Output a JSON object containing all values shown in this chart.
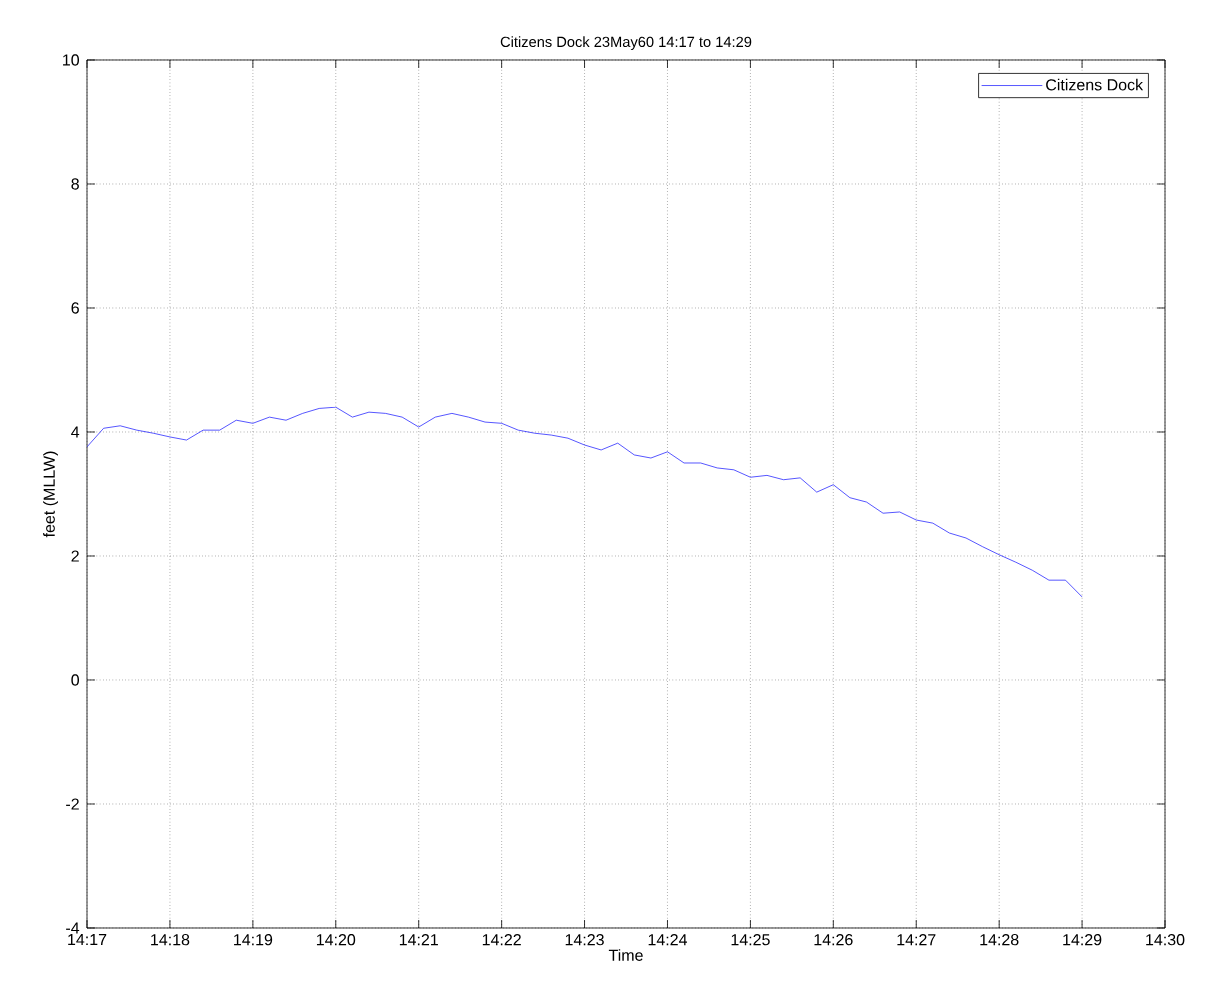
{
  "chart_data": {
    "type": "line",
    "title": "Citizens Dock 23May60 14:17 to 14:29",
    "xlabel": "Time",
    "ylabel": "feet (MLLW)",
    "xlim": [
      14.28333,
      14.5
    ],
    "ylim": [
      -4,
      10
    ],
    "xticks": [
      {
        "value": 14.28333,
        "label": "14:17"
      },
      {
        "value": 14.3,
        "label": "14:18"
      },
      {
        "value": 14.31667,
        "label": "14:19"
      },
      {
        "value": 14.33333,
        "label": "14:20"
      },
      {
        "value": 14.35,
        "label": "14:21"
      },
      {
        "value": 14.36667,
        "label": "14:22"
      },
      {
        "value": 14.38333,
        "label": "14:23"
      },
      {
        "value": 14.4,
        "label": "14:24"
      },
      {
        "value": 14.41667,
        "label": "14:25"
      },
      {
        "value": 14.43333,
        "label": "14:26"
      },
      {
        "value": 14.45,
        "label": "14:27"
      },
      {
        "value": 14.46667,
        "label": "14:28"
      },
      {
        "value": 14.48333,
        "label": "14:29"
      },
      {
        "value": 14.5,
        "label": "14:30"
      }
    ],
    "yticks": [
      -4,
      -2,
      0,
      2,
      4,
      6,
      8,
      10
    ],
    "grid": true,
    "legend": "top right",
    "x": [
      14.28333,
      14.28667,
      14.29,
      14.29333,
      14.29667,
      14.3,
      14.30333,
      14.30667,
      14.31,
      14.31333,
      14.31667,
      14.32,
      14.32333,
      14.32667,
      14.33,
      14.33333,
      14.33667,
      14.34,
      14.34333,
      14.34667,
      14.35,
      14.35333,
      14.35667,
      14.36,
      14.36333,
      14.36667,
      14.37,
      14.37333,
      14.37667,
      14.38,
      14.38333,
      14.38667,
      14.39,
      14.39333,
      14.39667,
      14.4,
      14.40333,
      14.40667,
      14.41,
      14.41333,
      14.41667,
      14.42,
      14.42333,
      14.42667,
      14.43,
      14.43333,
      14.43667,
      14.44,
      14.44333,
      14.44667,
      14.45,
      14.45333,
      14.45667,
      14.46,
      14.46333,
      14.46667,
      14.47,
      14.47333,
      14.47667,
      14.48,
      14.48333
    ],
    "series": [
      {
        "name": "Citizens Dock",
        "color": "#0000ff",
        "values": [
          3.76,
          4.06,
          4.1,
          4.03,
          3.98,
          3.92,
          3.87,
          4.03,
          4.03,
          4.19,
          4.14,
          4.24,
          4.19,
          4.3,
          4.38,
          4.4,
          4.24,
          4.32,
          4.3,
          4.24,
          4.08,
          4.24,
          4.3,
          4.24,
          4.16,
          4.14,
          4.03,
          3.98,
          3.95,
          3.9,
          3.79,
          3.71,
          3.82,
          3.63,
          3.58,
          3.68,
          3.5,
          3.5,
          3.42,
          3.39,
          3.27,
          3.3,
          3.23,
          3.26,
          3.03,
          3.15,
          2.94,
          2.87,
          2.69,
          2.71,
          2.58,
          2.53,
          2.37,
          2.29,
          2.15,
          2.02,
          1.9,
          1.77,
          1.61,
          1.61,
          1.34
        ]
      }
    ]
  }
}
